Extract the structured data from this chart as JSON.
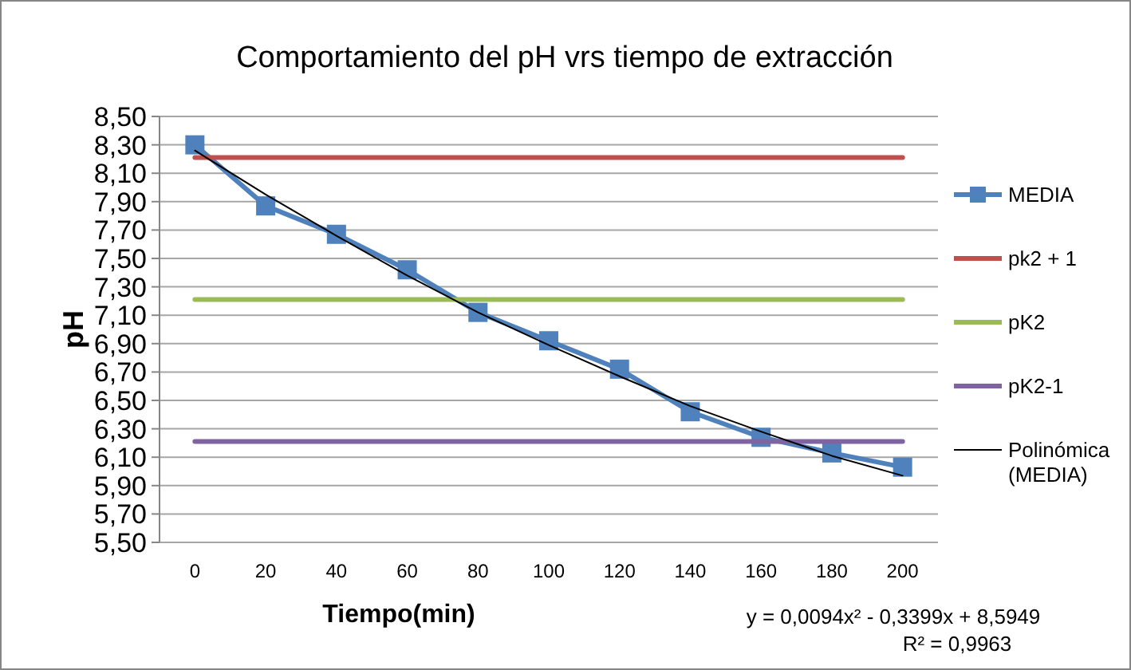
{
  "chart_data": {
    "type": "line",
    "title": "Comportamiento del pH vrs tiempo de extracción",
    "xlabel": "Tiempo(min)",
    "ylabel": "pH",
    "categories": [
      "0",
      "20",
      "40",
      "60",
      "80",
      "100",
      "120",
      "140",
      "160",
      "180",
      "200"
    ],
    "series": [
      {
        "name": "MEDIA",
        "color": "#4f81bd",
        "marker": "square",
        "values": [
          8.3,
          7.87,
          7.67,
          7.42,
          7.12,
          6.92,
          6.72,
          6.42,
          6.24,
          6.13,
          6.03
        ]
      },
      {
        "name": "pk2 + 1",
        "color": "#c0504d",
        "marker": "none",
        "values": [
          8.21,
          8.21,
          8.21,
          8.21,
          8.21,
          8.21,
          8.21,
          8.21,
          8.21,
          8.21,
          8.21
        ]
      },
      {
        "name": "pK2",
        "color": "#9bbb59",
        "marker": "none",
        "values": [
          7.21,
          7.21,
          7.21,
          7.21,
          7.21,
          7.21,
          7.21,
          7.21,
          7.21,
          7.21,
          7.21
        ]
      },
      {
        "name": "pK2-1",
        "color": "#8064a2",
        "marker": "none",
        "values": [
          6.21,
          6.21,
          6.21,
          6.21,
          6.21,
          6.21,
          6.21,
          6.21,
          6.21,
          6.21,
          6.21
        ]
      },
      {
        "name": "Polinómica (MEDIA)",
        "color": "#000000",
        "marker": "none",
        "values": [
          8.26,
          7.95,
          7.66,
          7.38,
          7.12,
          6.89,
          6.67,
          6.46,
          6.28,
          6.11,
          5.97
        ]
      }
    ],
    "ylim": [
      5.5,
      8.5
    ],
    "yticks": [
      {
        "value": 5.5,
        "label": "5,50"
      },
      {
        "value": 5.7,
        "label": "5,70"
      },
      {
        "value": 5.9,
        "label": "5,90"
      },
      {
        "value": 6.1,
        "label": "6,10"
      },
      {
        "value": 6.3,
        "label": "6,30"
      },
      {
        "value": 6.5,
        "label": "6,50"
      },
      {
        "value": 6.7,
        "label": "6,70"
      },
      {
        "value": 6.9,
        "label": "6,90"
      },
      {
        "value": 7.1,
        "label": "7,10"
      },
      {
        "value": 7.3,
        "label": "7,30"
      },
      {
        "value": 7.5,
        "label": "7,50"
      },
      {
        "value": 7.7,
        "label": "7,70"
      },
      {
        "value": 7.9,
        "label": "7,90"
      },
      {
        "value": 8.1,
        "label": "8,10"
      },
      {
        "value": 8.3,
        "label": "8,30"
      },
      {
        "value": 8.5,
        "label": "8,50"
      }
    ],
    "grid": "y",
    "legend": "right",
    "annotations": [
      "y = 0,0094x² - 0,3399x + 8,5949",
      "R² = 0,9963"
    ]
  }
}
